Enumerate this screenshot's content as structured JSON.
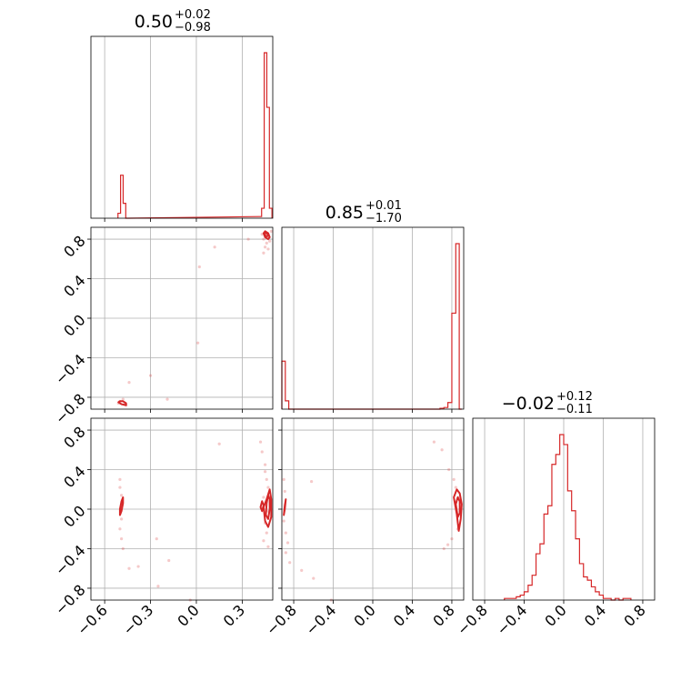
{
  "chart_data": {
    "type": "corner",
    "color": "#d62728",
    "grid": true,
    "parameters": [
      {
        "index": 0,
        "range": [
          -0.69,
          0.5
        ],
        "ticks": [
          -0.6,
          -0.3,
          0.0,
          0.3
        ],
        "tick_labels": [
          "−0.6",
          "−0.3",
          "0.0",
          "0.3"
        ]
      },
      {
        "index": 1,
        "range": [
          -0.92,
          0.92
        ],
        "ticks": [
          -0.8,
          -0.4,
          0.0,
          0.4,
          0.8
        ],
        "tick_labels": [
          "−0.8",
          "−0.4",
          "0.0",
          "0.4",
          "0.8"
        ]
      },
      {
        "index": 2,
        "range": [
          -0.92,
          0.92
        ],
        "ticks": [
          -0.8,
          -0.4,
          0.0,
          0.4,
          0.8
        ],
        "tick_labels": [
          "−0.8",
          "−0.4",
          "0.0",
          "0.4",
          "0.8"
        ]
      }
    ],
    "titles": [
      {
        "median": "0.50",
        "plus": "+0.02",
        "minus": "−0.98"
      },
      {
        "median": "0.85",
        "plus": "+0.01",
        "minus": "−1.70"
      },
      {
        "median": "−0.02",
        "plus": "+0.12",
        "minus": "−0.11"
      }
    ],
    "histograms": [
      {
        "param": 0,
        "bins": [
          {
            "x0": -0.513,
            "x1": -0.496,
            "count": 0.03
          },
          {
            "x0": -0.496,
            "x1": -0.479,
            "count": 0.26
          },
          {
            "x0": -0.479,
            "x1": -0.462,
            "count": 0.09
          },
          {
            "x0": -0.462,
            "x1": -0.445,
            "count": 0.0
          },
          {
            "x0": 0.41,
            "x1": 0.427,
            "count": 0.01
          },
          {
            "x0": 0.427,
            "x1": 0.444,
            "count": 0.06
          },
          {
            "x0": 0.444,
            "x1": 0.461,
            "count": 1.0
          },
          {
            "x0": 0.461,
            "x1": 0.478,
            "count": 0.67
          },
          {
            "x0": 0.478,
            "x1": 0.495,
            "count": 0.06
          }
        ]
      },
      {
        "param": 1,
        "bins": [
          {
            "x0": -0.92,
            "x1": -0.885,
            "count": 0.29
          },
          {
            "x0": -0.885,
            "x1": -0.85,
            "count": 0.05
          },
          {
            "x0": -0.85,
            "x1": 0.68,
            "count": 0.0
          },
          {
            "x0": 0.68,
            "x1": 0.72,
            "count": 0.005
          },
          {
            "x0": 0.72,
            "x1": 0.76,
            "count": 0.01
          },
          {
            "x0": 0.76,
            "x1": 0.8,
            "count": 0.04
          },
          {
            "x0": 0.8,
            "x1": 0.84,
            "count": 0.58
          },
          {
            "x0": 0.84,
            "x1": 0.875,
            "count": 1.0
          },
          {
            "x0": 0.875,
            "x1": 0.9,
            "count": 0.0
          }
        ]
      },
      {
        "param": 2,
        "bins": [
          {
            "x0": -0.6,
            "x1": -0.56,
            "count": 0.01
          },
          {
            "x0": -0.56,
            "x1": -0.52,
            "count": 0.01
          },
          {
            "x0": -0.52,
            "x1": -0.48,
            "count": 0.01
          },
          {
            "x0": -0.48,
            "x1": -0.44,
            "count": 0.02
          },
          {
            "x0": -0.44,
            "x1": -0.4,
            "count": 0.03
          },
          {
            "x0": -0.4,
            "x1": -0.36,
            "count": 0.05
          },
          {
            "x0": -0.36,
            "x1": -0.32,
            "count": 0.09
          },
          {
            "x0": -0.32,
            "x1": -0.28,
            "count": 0.15
          },
          {
            "x0": -0.28,
            "x1": -0.24,
            "count": 0.28
          },
          {
            "x0": -0.24,
            "x1": -0.2,
            "count": 0.34
          },
          {
            "x0": -0.2,
            "x1": -0.16,
            "count": 0.52
          },
          {
            "x0": -0.16,
            "x1": -0.12,
            "count": 0.57
          },
          {
            "x0": -0.12,
            "x1": -0.08,
            "count": 0.82
          },
          {
            "x0": -0.08,
            "x1": -0.04,
            "count": 0.88
          },
          {
            "x0": -0.04,
            "x1": 0.0,
            "count": 1.0
          },
          {
            "x0": 0.0,
            "x1": 0.04,
            "count": 0.94
          },
          {
            "x0": 0.04,
            "x1": 0.08,
            "count": 0.66
          },
          {
            "x0": 0.08,
            "x1": 0.12,
            "count": 0.54
          },
          {
            "x0": 0.12,
            "x1": 0.16,
            "count": 0.37
          },
          {
            "x0": 0.16,
            "x1": 0.2,
            "count": 0.22
          },
          {
            "x0": 0.2,
            "x1": 0.24,
            "count": 0.14
          },
          {
            "x0": 0.24,
            "x1": 0.28,
            "count": 0.12
          },
          {
            "x0": 0.28,
            "x1": 0.32,
            "count": 0.08
          },
          {
            "x0": 0.32,
            "x1": 0.36,
            "count": 0.05
          },
          {
            "x0": 0.36,
            "x1": 0.4,
            "count": 0.03
          },
          {
            "x0": 0.4,
            "x1": 0.44,
            "count": 0.01
          },
          {
            "x0": 0.44,
            "x1": 0.48,
            "count": 0.01
          },
          {
            "x0": 0.48,
            "x1": 0.52,
            "count": 0.0
          },
          {
            "x0": 0.52,
            "x1": 0.56,
            "count": 0.01
          },
          {
            "x0": 0.56,
            "x1": 0.6,
            "count": 0.0
          },
          {
            "x0": 0.6,
            "x1": 0.64,
            "count": 0.01
          },
          {
            "x0": 0.64,
            "x1": 0.68,
            "count": 0.01
          }
        ]
      }
    ],
    "scatter": [
      {
        "x_param": 0,
        "y_param": 1,
        "points": [
          [
            0.46,
            0.86
          ],
          [
            0.45,
            0.84
          ],
          [
            0.47,
            0.83
          ],
          [
            0.44,
            0.8
          ],
          [
            0.48,
            0.78
          ],
          [
            0.46,
            0.76
          ],
          [
            0.43,
            0.85
          ],
          [
            0.49,
            0.88
          ],
          [
            0.45,
            0.72
          ],
          [
            0.47,
            0.7
          ],
          [
            0.44,
            0.66
          ],
          [
            0.34,
            0.8
          ],
          [
            0.12,
            0.72
          ],
          [
            0.02,
            0.52
          ],
          [
            0.01,
            -0.25
          ],
          [
            -0.3,
            -0.58
          ],
          [
            -0.44,
            -0.65
          ],
          [
            -0.48,
            -0.82
          ],
          [
            -0.5,
            -0.84
          ],
          [
            -0.47,
            -0.87
          ],
          [
            -0.51,
            -0.86
          ],
          [
            -0.46,
            -0.88
          ],
          [
            -0.19,
            -0.82
          ]
        ],
        "contours": [
          [
            [
              0.44,
              0.86
            ],
            [
              0.45,
              0.82
            ],
            [
              0.47,
              0.8
            ],
            [
              0.48,
              0.82
            ],
            [
              0.47,
              0.86
            ],
            [
              0.45,
              0.88
            ],
            [
              0.44,
              0.86
            ]
          ],
          [
            [
              0.445,
              0.85
            ],
            [
              0.455,
              0.83
            ],
            [
              0.465,
              0.83
            ],
            [
              0.47,
              0.845
            ],
            [
              0.46,
              0.86
            ],
            [
              0.45,
              0.865
            ],
            [
              0.445,
              0.85
            ]
          ],
          [
            [
              -0.51,
              -0.85
            ],
            [
              -0.49,
              -0.87
            ],
            [
              -0.46,
              -0.88
            ],
            [
              -0.46,
              -0.86
            ],
            [
              -0.48,
              -0.84
            ],
            [
              -0.5,
              -0.84
            ],
            [
              -0.51,
              -0.85
            ]
          ]
        ]
      },
      {
        "x_param": 0,
        "y_param": 2,
        "points": [
          [
            0.45,
            0.38
          ],
          [
            0.46,
            0.3
          ],
          [
            0.47,
            0.22
          ],
          [
            0.44,
            0.12
          ],
          [
            0.47,
            -0.02
          ],
          [
            0.45,
            -0.14
          ],
          [
            0.46,
            -0.24
          ],
          [
            0.44,
            -0.32
          ],
          [
            0.47,
            -0.38
          ],
          [
            0.45,
            0.45
          ],
          [
            0.43,
            0.58
          ],
          [
            0.42,
            0.68
          ],
          [
            0.15,
            0.66
          ],
          [
            -0.5,
            0.3
          ],
          [
            -0.5,
            0.22
          ],
          [
            -0.49,
            0.14
          ],
          [
            -0.49,
            -0.1
          ],
          [
            -0.5,
            -0.2
          ],
          [
            -0.49,
            -0.3
          ],
          [
            -0.48,
            -0.4
          ],
          [
            -0.44,
            -0.6
          ],
          [
            -0.38,
            -0.58
          ],
          [
            -0.26,
            -0.3
          ],
          [
            -0.25,
            -0.78
          ],
          [
            -0.18,
            -0.52
          ],
          [
            -0.04,
            -0.92
          ]
        ],
        "contours": [
          [
            [
              0.45,
              -0.12
            ],
            [
              0.47,
              -0.18
            ],
            [
              0.49,
              -0.08
            ],
            [
              0.49,
              0.1
            ],
            [
              0.48,
              0.2
            ],
            [
              0.46,
              0.1
            ],
            [
              0.44,
              0.02
            ],
            [
              0.45,
              -0.12
            ]
          ],
          [
            [
              0.455,
              -0.06
            ],
            [
              0.47,
              -0.1
            ],
            [
              0.48,
              0.0
            ],
            [
              0.48,
              0.1
            ],
            [
              0.47,
              0.14
            ],
            [
              0.46,
              0.06
            ],
            [
              0.455,
              -0.06
            ]
          ],
          [
            [
              0.43,
              -0.02
            ],
            [
              0.44,
              0.04
            ],
            [
              0.43,
              0.08
            ],
            [
              0.42,
              0.02
            ],
            [
              0.43,
              -0.02
            ]
          ],
          [
            [
              -0.5,
              -0.06
            ],
            [
              -0.49,
              -0.02
            ],
            [
              -0.48,
              0.06
            ],
            [
              -0.48,
              0.12
            ],
            [
              -0.49,
              0.08
            ],
            [
              -0.5,
              0.0
            ],
            [
              -0.5,
              -0.06
            ]
          ]
        ]
      },
      {
        "x_param": 1,
        "y_param": 2,
        "points": [
          [
            0.77,
            0.4
          ],
          [
            0.7,
            0.6
          ],
          [
            0.62,
            0.68
          ],
          [
            0.82,
            0.3
          ],
          [
            0.84,
            0.22
          ],
          [
            0.86,
            -0.2
          ],
          [
            0.8,
            -0.3
          ],
          [
            0.76,
            -0.36
          ],
          [
            0.72,
            -0.4
          ],
          [
            0.87,
            0.12
          ],
          [
            -0.9,
            0.3
          ],
          [
            -0.89,
            0.18
          ],
          [
            -0.9,
            -0.12
          ],
          [
            -0.88,
            -0.24
          ],
          [
            -0.86,
            -0.34
          ],
          [
            -0.88,
            -0.44
          ],
          [
            -0.84,
            -0.54
          ],
          [
            -0.72,
            -0.62
          ],
          [
            -0.6,
            -0.7
          ],
          [
            -0.42,
            -0.92
          ],
          [
            -0.62,
            0.28
          ]
        ],
        "contours": [
          [
            [
              0.82,
              0.12
            ],
            [
              0.85,
              -0.05
            ],
            [
              0.87,
              -0.22
            ],
            [
              0.89,
              -0.1
            ],
            [
              0.9,
              0.05
            ],
            [
              0.88,
              0.16
            ],
            [
              0.85,
              0.2
            ],
            [
              0.82,
              0.12
            ]
          ],
          [
            [
              0.84,
              0.05
            ],
            [
              0.86,
              -0.08
            ],
            [
              0.88,
              -0.04
            ],
            [
              0.88,
              0.08
            ],
            [
              0.86,
              0.12
            ],
            [
              0.84,
              0.05
            ]
          ],
          [
            [
              -0.9,
              -0.06
            ],
            [
              -0.89,
              0.04
            ],
            [
              -0.88,
              0.1
            ],
            [
              -0.89,
              0.0
            ],
            [
              -0.9,
              -0.06
            ]
          ]
        ]
      }
    ]
  }
}
